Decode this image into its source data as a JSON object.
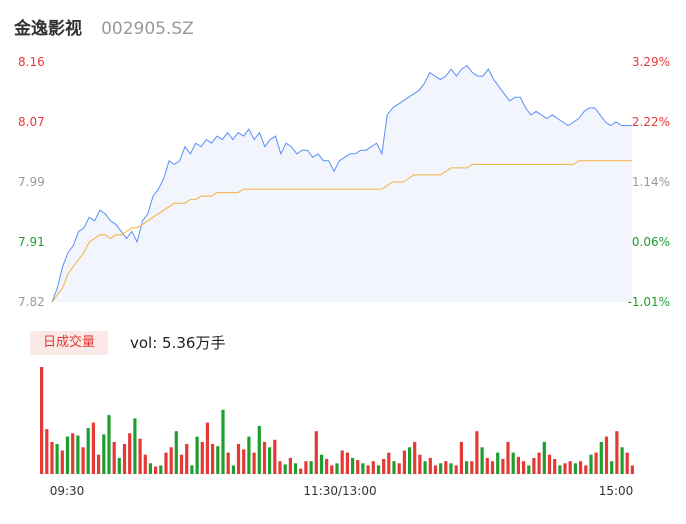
{
  "header": {
    "name": "金逸影视",
    "code": "002905.SZ"
  },
  "volume_panel": {
    "tab_label": "日成交量",
    "vol_text": "vol: 5.36万手"
  },
  "colors": {
    "up": "#e53935",
    "down": "#1e9e2f",
    "neutral": "#999999",
    "price_line": "#5b8ff9",
    "avg_line": "#f5b041",
    "area_fill": "#f2f5fc"
  },
  "chart_data": [
    {
      "type": "line",
      "title": "",
      "y_left_ticks": [
        "8.16",
        "8.07",
        "7.99",
        "7.91",
        "7.82"
      ],
      "y_right_ticks": [
        "3.29%",
        "2.22%",
        "1.14%",
        "0.06%",
        "-1.01%"
      ],
      "ylim": [
        7.82,
        8.16
      ],
      "x_ticks": [
        "09:30",
        "11:30/13:00",
        "15:00"
      ],
      "series": [
        {
          "values": [
            7.82,
            7.84,
            7.87,
            7.89,
            7.9,
            7.92,
            7.925,
            7.94,
            7.935,
            7.95,
            7.945,
            7.935,
            7.93,
            7.92,
            7.91,
            7.92,
            7.905,
            7.935,
            7.945,
            7.97,
            7.98,
            7.995,
            8.02,
            8.015,
            8.02,
            8.04,
            8.03,
            8.045,
            8.04,
            8.05,
            8.045,
            8.055,
            8.05,
            8.06,
            8.05,
            8.06,
            8.055,
            8.065,
            8.05,
            8.06,
            8.04,
            8.05,
            8.055,
            8.03,
            8.045,
            8.04,
            8.03,
            8.035,
            8.035,
            8.025,
            8.03,
            8.02,
            8.02,
            8.005,
            8.02,
            8.025,
            8.03,
            8.03,
            8.035,
            8.035,
            8.04,
            8.045,
            8.03,
            8.085,
            8.095,
            8.1,
            8.105,
            8.11,
            8.115,
            8.12,
            8.13,
            8.145,
            8.14,
            8.135,
            8.14,
            8.15,
            8.14,
            8.15,
            8.155,
            8.145,
            8.14,
            8.14,
            8.15,
            8.135,
            8.125,
            8.115,
            8.105,
            8.11,
            8.11,
            8.095,
            8.085,
            8.09,
            8.085,
            8.08,
            8.085,
            8.08,
            8.075,
            8.07,
            8.075,
            8.08,
            8.09,
            8.095,
            8.095,
            8.085,
            8.075,
            8.07,
            8.075,
            8.07,
            8.07,
            8.07
          ],
          "color": "#5b8ff9"
        },
        {
          "values": [
            7.82,
            7.83,
            7.84,
            7.86,
            7.87,
            7.88,
            7.89,
            7.905,
            7.91,
            7.915,
            7.915,
            7.91,
            7.915,
            7.915,
            7.92,
            7.925,
            7.925,
            7.93,
            7.935,
            7.94,
            7.945,
            7.95,
            7.955,
            7.96,
            7.96,
            7.96,
            7.965,
            7.965,
            7.97,
            7.97,
            7.97,
            7.975,
            7.975,
            7.975,
            7.975,
            7.975,
            7.98,
            7.98,
            7.98,
            7.98,
            7.98,
            7.98,
            7.98,
            7.98,
            7.98,
            7.98,
            7.98,
            7.98,
            7.98,
            7.98,
            7.98,
            7.98,
            7.98,
            7.98,
            7.98,
            7.98,
            7.98,
            7.98,
            7.98,
            7.98,
            7.98,
            7.98,
            7.98,
            7.985,
            7.99,
            7.99,
            7.99,
            7.995,
            8.0,
            8.0,
            8.0,
            8.0,
            8.0,
            8.0,
            8.005,
            8.01,
            8.01,
            8.01,
            8.01,
            8.015,
            8.015,
            8.015,
            8.015,
            8.015,
            8.015,
            8.015,
            8.015,
            8.015,
            8.015,
            8.015,
            8.015,
            8.015,
            8.015,
            8.015,
            8.015,
            8.015,
            8.015,
            8.015,
            8.015,
            8.02,
            8.02,
            8.02,
            8.02,
            8.02,
            8.02,
            8.02,
            8.02,
            8.02,
            8.02,
            8.02
          ],
          "color": "#f5b041"
        }
      ]
    },
    {
      "type": "bar",
      "title": "",
      "x_ticks": [
        "09:30",
        "11:30/13:00",
        "15:00"
      ],
      "values": [
        100,
        42,
        30,
        28,
        22,
        35,
        38,
        36,
        25,
        43,
        48,
        18,
        37,
        55,
        30,
        15,
        28,
        38,
        52,
        33,
        18,
        10,
        7,
        8,
        20,
        25,
        40,
        18,
        28,
        8,
        35,
        30,
        48,
        28,
        26,
        60,
        20,
        8,
        28,
        23,
        35,
        20,
        45,
        30,
        25,
        32,
        12,
        9,
        15,
        10,
        5,
        12,
        12,
        40,
        18,
        14,
        8,
        10,
        22,
        20,
        15,
        13,
        10,
        8,
        12,
        8,
        14,
        20,
        12,
        10,
        22,
        25,
        30,
        18,
        12,
        15,
        8,
        10,
        12,
        10,
        8,
        30,
        12,
        12,
        40,
        25,
        15,
        12,
        20,
        14,
        30,
        20,
        16,
        12,
        8,
        15,
        20,
        30,
        18,
        14,
        8,
        10,
        12,
        10,
        12,
        8,
        18,
        20,
        30,
        35,
        12,
        40,
        25,
        20,
        8
      ],
      "up_down": [
        1,
        1,
        1,
        0,
        1,
        0,
        1,
        0,
        1,
        0,
        1,
        1,
        0,
        0,
        1,
        0,
        1,
        1,
        0,
        1,
        1,
        0,
        1,
        0,
        1,
        1,
        0,
        1,
        1,
        0,
        0,
        1,
        1,
        1,
        0,
        0,
        1,
        0,
        1,
        1,
        0,
        1,
        0,
        1,
        0,
        1,
        1,
        0,
        1,
        0,
        1,
        1,
        0,
        1,
        0,
        1,
        1,
        0,
        1,
        1,
        0,
        1,
        0,
        1,
        1,
        0,
        1,
        1,
        0,
        1,
        1,
        0,
        1,
        1,
        0,
        1,
        1,
        0,
        1,
        0,
        1,
        1,
        0,
        1,
        1,
        0,
        1,
        1,
        0,
        1,
        1,
        0,
        1,
        1,
        0,
        1,
        1,
        0,
        1,
        1,
        0,
        1,
        1,
        0,
        1,
        1,
        0,
        1,
        0,
        1,
        0,
        1,
        0,
        1,
        1
      ]
    }
  ]
}
